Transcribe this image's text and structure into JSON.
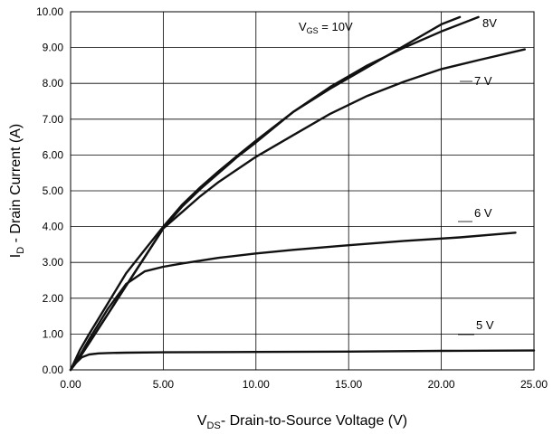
{
  "chart_data": {
    "type": "line",
    "xlabel": {
      "main": "V",
      "sub": "DS",
      "rest": "- Drain-to-Source Voltage (V)"
    },
    "ylabel": {
      "main": "I",
      "sub": "D",
      "rest": " - Drain Current (A)"
    },
    "xlim": [
      0,
      25
    ],
    "ylim": [
      0,
      10
    ],
    "grid": true,
    "x_ticks": [
      "0.00",
      "5.00",
      "10.00",
      "15.00",
      "20.00",
      "25.00"
    ],
    "y_ticks": [
      "0.00",
      "1.00",
      "2.00",
      "3.00",
      "4.00",
      "5.00",
      "6.00",
      "7.00",
      "8.00",
      "9.00",
      "10.00"
    ],
    "series": [
      {
        "name": "V_GS = 10V",
        "label": {
          "main": "V",
          "sub": "GS",
          "rest": " = 10V"
        },
        "x": [
          0,
          0.5,
          1,
          2,
          3,
          4,
          5,
          6,
          7,
          8,
          9,
          10,
          12,
          14,
          16,
          18,
          20,
          21
        ],
        "y": [
          0,
          0.55,
          1.0,
          1.85,
          2.7,
          3.35,
          4.0,
          4.6,
          5.1,
          5.55,
          5.98,
          6.4,
          7.2,
          7.85,
          8.45,
          9.05,
          9.65,
          9.85
        ]
      },
      {
        "name": "8V",
        "label": {
          "main": "8V",
          "sub": "",
          "rest": ""
        },
        "x": [
          0,
          0.5,
          1,
          2,
          3,
          4,
          5,
          6,
          7,
          8,
          9,
          10,
          12,
          14,
          16,
          18,
          20,
          22
        ],
        "y": [
          0,
          0.35,
          0.75,
          1.55,
          2.35,
          3.15,
          3.95,
          4.55,
          5.05,
          5.5,
          5.95,
          6.35,
          7.2,
          7.9,
          8.5,
          9.0,
          9.45,
          9.85
        ]
      },
      {
        "name": "7 V",
        "label": {
          "main": "7 V",
          "sub": "",
          "rest": ""
        },
        "x": [
          0,
          0.5,
          1,
          2,
          3,
          4,
          5,
          6,
          7,
          8,
          9,
          10,
          12,
          14,
          16,
          18,
          20,
          22,
          24.5
        ],
        "y": [
          0,
          0.35,
          0.75,
          1.55,
          2.35,
          3.15,
          3.95,
          4.4,
          4.85,
          5.25,
          5.6,
          5.95,
          6.55,
          7.15,
          7.65,
          8.05,
          8.4,
          8.65,
          8.95
        ]
      },
      {
        "name": "6 V",
        "label": {
          "main": "6 V",
          "sub": "",
          "rest": ""
        },
        "x": [
          0,
          0.5,
          1,
          2,
          3,
          4,
          5,
          6,
          8,
          10,
          12,
          15,
          18,
          21,
          24
        ],
        "y": [
          0,
          0.4,
          0.85,
          1.7,
          2.4,
          2.75,
          2.88,
          2.97,
          3.13,
          3.25,
          3.35,
          3.48,
          3.6,
          3.7,
          3.83
        ]
      },
      {
        "name": "5 V",
        "label": {
          "main": "5 V",
          "sub": "",
          "rest": ""
        },
        "x": [
          0,
          0.3,
          0.6,
          1,
          1.5,
          2,
          3,
          5,
          10,
          15,
          20,
          25
        ],
        "y": [
          0,
          0.2,
          0.35,
          0.43,
          0.46,
          0.47,
          0.48,
          0.49,
          0.5,
          0.51,
          0.53,
          0.54
        ]
      }
    ]
  }
}
